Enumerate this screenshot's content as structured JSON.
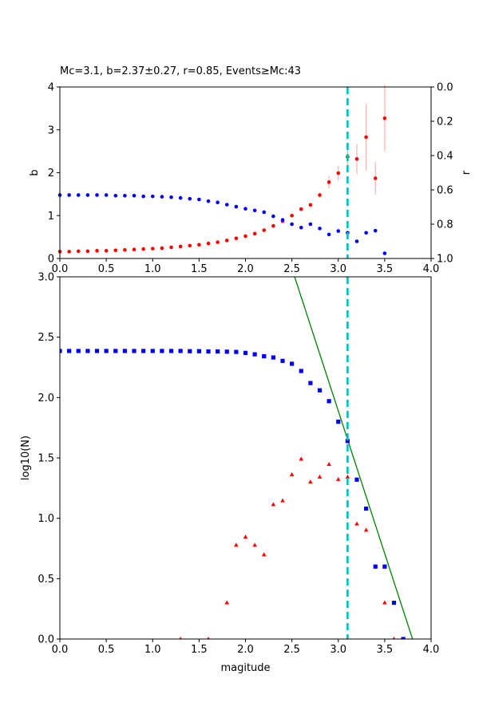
{
  "chart_data": [
    {
      "type": "scatter",
      "title": "Mc=3.1, b=2.37±0.27, r=0.85, Events≥Mc:43",
      "xlabel": "",
      "ylabel": "b",
      "ylabel_right": "r",
      "xlim": [
        0,
        4
      ],
      "ylim": [
        0,
        4
      ],
      "ylim_right": [
        1.0,
        0.0
      ],
      "x_ticks": [
        "0.0",
        "0.5",
        "1.0",
        "1.5",
        "2.0",
        "2.5",
        "3.0",
        "3.5",
        "4.0"
      ],
      "y_ticks": [
        "0",
        "1",
        "2",
        "3",
        "4"
      ],
      "y_ticks_right": [
        "0.0",
        "0.2",
        "0.4",
        "0.6",
        "0.8",
        "1.0"
      ],
      "mc_line": 3.1,
      "colors": {
        "b": "#ff0000",
        "r": "#0000ff",
        "error_bar": "#ffb3b3",
        "mc_line": "#00bfbf"
      },
      "series": [
        {
          "axis": "left",
          "x": [
            0.0,
            0.1,
            0.2,
            0.3,
            0.4,
            0.5,
            0.6,
            0.7,
            0.8,
            0.9,
            1.0,
            1.1,
            1.2,
            1.3,
            1.4,
            1.5,
            1.6,
            1.7,
            1.8,
            1.9,
            2.0,
            2.1,
            2.2,
            2.3,
            2.4,
            2.5,
            2.6,
            2.7,
            2.8,
            2.9,
            3.0,
            3.1,
            3.2,
            3.3,
            3.4,
            3.5
          ],
          "y": [
            0.16,
            0.16,
            0.17,
            0.17,
            0.18,
            0.18,
            0.19,
            0.2,
            0.21,
            0.22,
            0.23,
            0.24,
            0.26,
            0.28,
            0.3,
            0.32,
            0.35,
            0.38,
            0.42,
            0.47,
            0.52,
            0.58,
            0.66,
            0.76,
            0.87,
            1.0,
            1.15,
            1.25,
            1.48,
            1.78,
            1.99,
            2.37,
            2.32,
            2.83,
            1.87,
            3.27
          ],
          "err": [
            0,
            0,
            0,
            0,
            0,
            0,
            0,
            0,
            0,
            0,
            0,
            0,
            0,
            0,
            0,
            0,
            0,
            0,
            0,
            0,
            0,
            0,
            0,
            0,
            0,
            0,
            0,
            0,
            0.05,
            0.15,
            0.17,
            0.27,
            0.35,
            0.77,
            0.38,
            0.78
          ]
        },
        {
          "axis": "right",
          "x": [
            0.0,
            0.1,
            0.2,
            0.3,
            0.4,
            0.5,
            0.6,
            0.7,
            0.8,
            0.9,
            1.0,
            1.1,
            1.2,
            1.3,
            1.4,
            1.5,
            1.6,
            1.7,
            1.8,
            1.9,
            2.0,
            2.1,
            2.2,
            2.3,
            2.4,
            2.5,
            2.6,
            2.7,
            2.8,
            2.9,
            3.0,
            3.1,
            3.2,
            3.3,
            3.4,
            3.5
          ],
          "y": [
            0.63,
            0.63,
            0.63,
            0.63,
            0.63,
            0.63,
            0.634,
            0.634,
            0.634,
            0.638,
            0.638,
            0.64,
            0.643,
            0.647,
            0.652,
            0.656,
            0.666,
            0.673,
            0.686,
            0.698,
            0.71,
            0.72,
            0.73,
            0.754,
            0.775,
            0.8,
            0.82,
            0.8,
            0.825,
            0.86,
            0.84,
            0.85,
            0.9,
            0.85,
            0.838,
            0.97
          ]
        }
      ]
    },
    {
      "type": "scatter",
      "title": "",
      "xlabel": "magitude",
      "ylabel": "log10(N)",
      "xlim": [
        0,
        4
      ],
      "ylim": [
        0,
        3
      ],
      "x_ticks": [
        "0.0",
        "0.5",
        "1.0",
        "1.5",
        "2.0",
        "2.5",
        "3.0",
        "3.5",
        "4.0"
      ],
      "y_ticks": [
        "0.0",
        "0.5",
        "1.0",
        "1.5",
        "2.0",
        "2.5",
        "3.0"
      ],
      "mc_line": 3.1,
      "fit_line": {
        "x": [
          2.5,
          3.8
        ],
        "y": [
          3.07,
          0.0
        ]
      },
      "colors": {
        "cumulative": "#0000ff",
        "noncumulative": "#ff0000",
        "fit": "#008000",
        "mc_line": "#00bfbf"
      },
      "series": [
        {
          "marker": "square",
          "x": [
            0.0,
            0.1,
            0.2,
            0.3,
            0.4,
            0.5,
            0.6,
            0.7,
            0.8,
            0.9,
            1.0,
            1.1,
            1.2,
            1.3,
            1.4,
            1.5,
            1.6,
            1.7,
            1.8,
            1.9,
            2.0,
            2.1,
            2.2,
            2.3,
            2.4,
            2.5,
            2.6,
            2.7,
            2.8,
            2.9,
            3.0,
            3.1,
            3.2,
            3.3,
            3.4,
            3.5,
            3.6,
            3.7
          ],
          "y": [
            2.386,
            2.386,
            2.386,
            2.386,
            2.386,
            2.386,
            2.386,
            2.386,
            2.386,
            2.386,
            2.386,
            2.386,
            2.386,
            2.386,
            2.384,
            2.384,
            2.382,
            2.382,
            2.38,
            2.378,
            2.37,
            2.358,
            2.342,
            2.332,
            2.304,
            2.28,
            2.22,
            2.12,
            2.06,
            1.97,
            1.8,
            1.64,
            1.32,
            1.08,
            0.6,
            0.6,
            0.3,
            0.0
          ]
        },
        {
          "marker": "triangle",
          "x": [
            1.3,
            1.6,
            1.8,
            1.9,
            2.0,
            2.1,
            2.2,
            2.3,
            2.4,
            2.5,
            2.6,
            2.7,
            2.8,
            2.9,
            3.0,
            3.1,
            3.2,
            3.3,
            3.5,
            3.6
          ],
          "y": [
            0.0,
            0.0,
            0.301,
            0.778,
            0.845,
            0.778,
            0.699,
            1.114,
            1.146,
            1.362,
            1.491,
            1.301,
            1.342,
            1.447,
            1.322,
            1.342,
            0.954,
            0.903,
            0.301,
            0.0
          ]
        }
      ]
    }
  ]
}
